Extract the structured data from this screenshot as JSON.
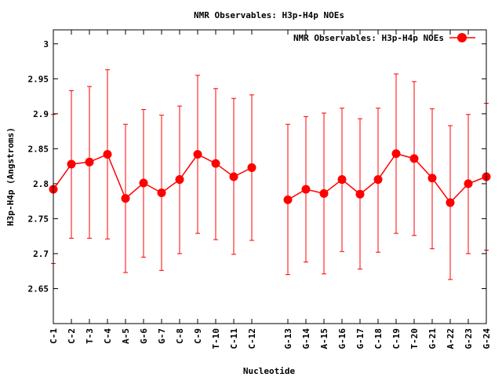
{
  "chart_data": {
    "type": "line",
    "title": "NMR Observables: H3p-H4p NOEs",
    "xlabel": "Nucleotide",
    "ylabel": "H3p-H4p (Angstroms)",
    "ylim": [
      2.6,
      3.02
    ],
    "yticks": [
      "2.65",
      "2.7",
      "2.75",
      "2.8",
      "2.85",
      "2.9",
      "2.95",
      "3"
    ],
    "grid": false,
    "legend": "top-right",
    "colors": {
      "series": "#ff0000"
    },
    "categories": [
      "C-1",
      "C-2",
      "T-3",
      "C-4",
      "A-5",
      "G-6",
      "G-7",
      "C-8",
      "C-9",
      "T-10",
      "C-11",
      "C-12",
      "G-13",
      "G-14",
      "A-15",
      "G-16",
      "G-17",
      "C-18",
      "C-19",
      "T-20",
      "G-21",
      "A-22",
      "G-23",
      "G-24"
    ],
    "x": [
      1,
      2,
      3,
      4,
      5,
      6,
      7,
      8,
      9,
      10,
      11,
      12,
      14,
      15,
      16,
      17,
      18,
      19,
      20,
      21,
      22,
      23,
      24,
      25
    ],
    "series": [
      {
        "name": "NMR Observables: H3p-H4p NOEs",
        "segments": [
          [
            0,
            11
          ],
          [
            12,
            23
          ]
        ],
        "values": [
          2.792,
          2.828,
          2.831,
          2.842,
          2.779,
          2.801,
          2.787,
          2.806,
          2.842,
          2.829,
          2.81,
          2.823,
          2.777,
          2.792,
          2.786,
          2.806,
          2.785,
          2.806,
          2.843,
          2.836,
          2.808,
          2.773,
          2.8,
          2.81
        ],
        "err_low": [
          2.686,
          2.722,
          2.722,
          2.721,
          2.673,
          2.695,
          2.676,
          2.7,
          2.729,
          2.72,
          2.699,
          2.719,
          2.67,
          2.688,
          2.671,
          2.703,
          2.678,
          2.702,
          2.729,
          2.726,
          2.707,
          2.663,
          2.7,
          2.705
        ],
        "err_high": [
          2.899,
          2.933,
          2.939,
          2.963,
          2.885,
          2.906,
          2.898,
          2.911,
          2.955,
          2.936,
          2.922,
          2.927,
          2.885,
          2.896,
          2.901,
          2.908,
          2.893,
          2.908,
          2.957,
          2.946,
          2.907,
          2.883,
          2.899,
          2.915
        ]
      }
    ]
  }
}
